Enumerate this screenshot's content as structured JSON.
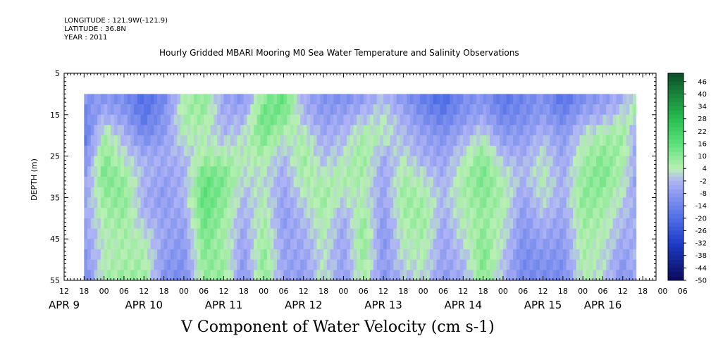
{
  "header": {
    "longitude": "LONGITUDE : 121.9W(-121.9)",
    "latitude": "LATITUDE : 36.8N",
    "year": "YEAR : 2011",
    "title": "Hourly Gridded MBARI Mooring M0 Sea Water Temperature and Salinity Observations"
  },
  "chart_data": {
    "type": "heatmap",
    "title": "Hourly Gridded MBARI Mooring M0 Sea Water Temperature and Salinity Observations",
    "xlabel": "V Component of Water Velocity (cm s-1)",
    "ylabel": "DEPTH (m)",
    "ylim": [
      55,
      5
    ],
    "y_ticks": [
      "5",
      "15",
      "25",
      "35",
      "45",
      "55"
    ],
    "x_hour_ticks": [
      "12",
      "18",
      "00",
      "06",
      "12",
      "18",
      "00",
      "06",
      "12",
      "18",
      "00",
      "06",
      "12",
      "18",
      "00",
      "06",
      "12",
      "18",
      "00",
      "06",
      "12",
      "18",
      "00",
      "06",
      "12",
      "18",
      "00",
      "06",
      "12",
      "18",
      "00",
      "06"
    ],
    "x_day_labels": [
      "APR  9",
      "APR 10",
      "APR 11",
      "APR 12",
      "APR 13",
      "APR 14",
      "APR 15",
      "APR 16"
    ],
    "x_range_hours": [
      12,
      190
    ],
    "data_x_range_hours": [
      18,
      184
    ],
    "data_depth_range": [
      10,
      55
    ],
    "colorbar_levels": [
      "46",
      "40",
      "34",
      "28",
      "22",
      "16",
      "10",
      "4",
      "-2",
      "-8",
      "-14",
      "-20",
      "-26",
      "-32",
      "-38",
      "-44",
      "-50"
    ],
    "colorbar_range": [
      -50,
      50
    ],
    "fields": {
      "description_values_cm_s": "approximate V velocity pattern per 6h step (columns) and depth band (rows 10-55m)",
      "times_hours": [
        18,
        24,
        30,
        36,
        42,
        48,
        54,
        60,
        66,
        72,
        78,
        84,
        90,
        96,
        102,
        108,
        114,
        120,
        126,
        132,
        138,
        144,
        150,
        156,
        162,
        168,
        174,
        180,
        184
      ],
      "depths_m": [
        10,
        15,
        20,
        25,
        30,
        35,
        40,
        45,
        50,
        55
      ],
      "values": [
        [
          -8,
          -10,
          -12,
          -20,
          -14,
          4,
          10,
          -6,
          -10,
          8,
          16,
          -4,
          -10,
          -12,
          -8,
          -2,
          -10,
          -16,
          -22,
          -12,
          -10,
          -18,
          -14,
          -10,
          -20,
          -12,
          -8,
          -6,
          4
        ],
        [
          -14,
          -4,
          -8,
          -18,
          -10,
          6,
          8,
          -4,
          -4,
          14,
          12,
          -2,
          -8,
          -6,
          -2,
          2,
          -4,
          -12,
          -16,
          -10,
          -6,
          -14,
          -12,
          -8,
          -14,
          -6,
          -4,
          2,
          6
        ],
        [
          -18,
          6,
          -2,
          -12,
          -8,
          4,
          4,
          -2,
          2,
          12,
          4,
          4,
          -4,
          -2,
          6,
          4,
          -2,
          -6,
          -10,
          -4,
          2,
          -8,
          -8,
          -2,
          -8,
          2,
          6,
          8,
          -6
        ],
        [
          -12,
          10,
          2,
          -4,
          -4,
          -2,
          6,
          6,
          4,
          6,
          -2,
          8,
          -2,
          2,
          8,
          -4,
          2,
          -4,
          -6,
          2,
          10,
          -2,
          -4,
          2,
          -6,
          6,
          10,
          6,
          -4
        ],
        [
          -8,
          12,
          8,
          -2,
          -6,
          -4,
          14,
          12,
          2,
          2,
          -4,
          6,
          4,
          6,
          6,
          -6,
          6,
          2,
          -4,
          6,
          12,
          4,
          -2,
          4,
          -4,
          8,
          12,
          4,
          -6
        ],
        [
          -6,
          8,
          10,
          -4,
          -8,
          -2,
          16,
          10,
          -2,
          4,
          -6,
          2,
          8,
          2,
          4,
          -6,
          8,
          6,
          -2,
          6,
          10,
          6,
          -6,
          2,
          -4,
          10,
          8,
          2,
          -6
        ],
        [
          -6,
          6,
          8,
          -2,
          -6,
          -6,
          14,
          8,
          -4,
          6,
          -8,
          -2,
          6,
          -4,
          8,
          -8,
          6,
          8,
          -4,
          4,
          8,
          4,
          -8,
          -2,
          -6,
          8,
          6,
          -2,
          -4
        ],
        [
          -8,
          4,
          6,
          4,
          -6,
          -8,
          12,
          6,
          -6,
          8,
          -6,
          -4,
          4,
          -6,
          10,
          -10,
          4,
          6,
          -6,
          2,
          10,
          2,
          -10,
          -6,
          -8,
          6,
          4,
          -4,
          -4
        ],
        [
          -10,
          4,
          6,
          6,
          -8,
          -10,
          10,
          8,
          -8,
          10,
          -6,
          -6,
          2,
          -6,
          8,
          -8,
          2,
          4,
          -6,
          -2,
          12,
          0,
          -12,
          -10,
          -10,
          6,
          2,
          -8,
          -2
        ],
        [
          -14,
          6,
          8,
          8,
          -10,
          -12,
          8,
          8,
          -10,
          10,
          -6,
          -8,
          4,
          -8,
          6,
          -10,
          -2,
          2,
          -8,
          -4,
          10,
          -2,
          -12,
          -12,
          -12,
          4,
          2,
          -10,
          -4
        ]
      ]
    },
    "colors": {
      "dark_navy": "#0a0a5a",
      "blue": "#2a4fd6",
      "light_blue": "#a6b4f2",
      "pale_green": "#b8f0b0",
      "green": "#4de070",
      "dark_green": "#0a5a2a"
    }
  }
}
